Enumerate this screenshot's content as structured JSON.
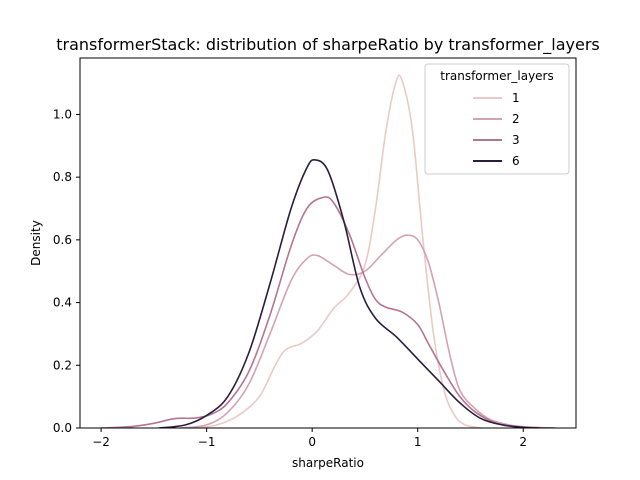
{
  "chart_data": {
    "type": "line",
    "title": "transformerStack: distribution of sharpeRatio by transformer_layers",
    "xlabel": "sharpeRatio",
    "ylabel": "Density",
    "xlim": [
      -2.2,
      2.5
    ],
    "ylim": [
      0,
      1.18
    ],
    "x_ticks": [
      -2,
      -1,
      0,
      1,
      2
    ],
    "x_tick_labels": [
      "−2",
      "−1",
      "0",
      "1",
      "2"
    ],
    "y_ticks": [
      0.0,
      0.2,
      0.4,
      0.6,
      0.8,
      1.0
    ],
    "y_tick_labels": [
      "0.0",
      "0.2",
      "0.4",
      "0.6",
      "0.8",
      "1.0"
    ],
    "grid": false,
    "legend": {
      "title": "transformer_layers",
      "placement": "top-right"
    },
    "series": [
      {
        "name": "1",
        "color": "#ebc9c8",
        "points": [
          [
            -1.1,
            0.0
          ],
          [
            -0.9,
            0.01
          ],
          [
            -0.7,
            0.04
          ],
          [
            -0.5,
            0.1
          ],
          [
            -0.35,
            0.2
          ],
          [
            -0.25,
            0.25
          ],
          [
            -0.1,
            0.27
          ],
          [
            0.05,
            0.31
          ],
          [
            0.2,
            0.38
          ],
          [
            0.35,
            0.43
          ],
          [
            0.5,
            0.52
          ],
          [
            0.6,
            0.7
          ],
          [
            0.7,
            0.95
          ],
          [
            0.8,
            1.11
          ],
          [
            0.86,
            1.1
          ],
          [
            0.95,
            0.95
          ],
          [
            1.05,
            0.6
          ],
          [
            1.15,
            0.3
          ],
          [
            1.25,
            0.12
          ],
          [
            1.35,
            0.04
          ],
          [
            1.45,
            0.01
          ],
          [
            1.6,
            0.0
          ]
        ]
      },
      {
        "name": "2",
        "color": "#d3a2b3",
        "points": [
          [
            -1.25,
            0.0
          ],
          [
            -1.0,
            0.01
          ],
          [
            -0.8,
            0.05
          ],
          [
            -0.6,
            0.14
          ],
          [
            -0.4,
            0.3
          ],
          [
            -0.2,
            0.47
          ],
          [
            -0.05,
            0.54
          ],
          [
            0.05,
            0.55
          ],
          [
            0.2,
            0.52
          ],
          [
            0.35,
            0.49
          ],
          [
            0.5,
            0.5
          ],
          [
            0.65,
            0.55
          ],
          [
            0.8,
            0.6
          ],
          [
            0.9,
            0.615
          ],
          [
            1.0,
            0.6
          ],
          [
            1.1,
            0.53
          ],
          [
            1.2,
            0.4
          ],
          [
            1.3,
            0.24
          ],
          [
            1.4,
            0.12
          ],
          [
            1.55,
            0.06
          ],
          [
            1.7,
            0.025
          ],
          [
            1.9,
            0.008
          ],
          [
            2.1,
            0.002
          ],
          [
            2.3,
            0.0
          ]
        ]
      },
      {
        "name": "3",
        "color": "#b37690",
        "points": [
          [
            -2.0,
            0.0
          ],
          [
            -1.7,
            0.005
          ],
          [
            -1.5,
            0.015
          ],
          [
            -1.3,
            0.03
          ],
          [
            -1.1,
            0.032
          ],
          [
            -0.95,
            0.045
          ],
          [
            -0.8,
            0.08
          ],
          [
            -0.6,
            0.18
          ],
          [
            -0.4,
            0.36
          ],
          [
            -0.2,
            0.58
          ],
          [
            -0.05,
            0.7
          ],
          [
            0.1,
            0.735
          ],
          [
            0.2,
            0.72
          ],
          [
            0.35,
            0.62
          ],
          [
            0.5,
            0.48
          ],
          [
            0.6,
            0.41
          ],
          [
            0.7,
            0.385
          ],
          [
            0.85,
            0.37
          ],
          [
            1.0,
            0.33
          ],
          [
            1.1,
            0.27
          ],
          [
            1.25,
            0.18
          ],
          [
            1.4,
            0.1
          ],
          [
            1.55,
            0.05
          ],
          [
            1.75,
            0.015
          ],
          [
            2.0,
            0.003
          ],
          [
            2.3,
            0.0
          ]
        ]
      },
      {
        "name": "6",
        "color": "#2a1e3c",
        "points": [
          [
            -1.45,
            0.0
          ],
          [
            -1.2,
            0.01
          ],
          [
            -1.0,
            0.04
          ],
          [
            -0.8,
            0.1
          ],
          [
            -0.6,
            0.24
          ],
          [
            -0.4,
            0.46
          ],
          [
            -0.2,
            0.7
          ],
          [
            -0.05,
            0.83
          ],
          [
            0.03,
            0.855
          ],
          [
            0.15,
            0.82
          ],
          [
            0.3,
            0.66
          ],
          [
            0.45,
            0.45
          ],
          [
            0.6,
            0.35
          ],
          [
            0.8,
            0.29
          ],
          [
            1.0,
            0.22
          ],
          [
            1.2,
            0.15
          ],
          [
            1.4,
            0.08
          ],
          [
            1.6,
            0.03
          ],
          [
            1.8,
            0.01
          ],
          [
            2.0,
            0.002
          ],
          [
            2.15,
            0.0
          ]
        ]
      }
    ]
  }
}
